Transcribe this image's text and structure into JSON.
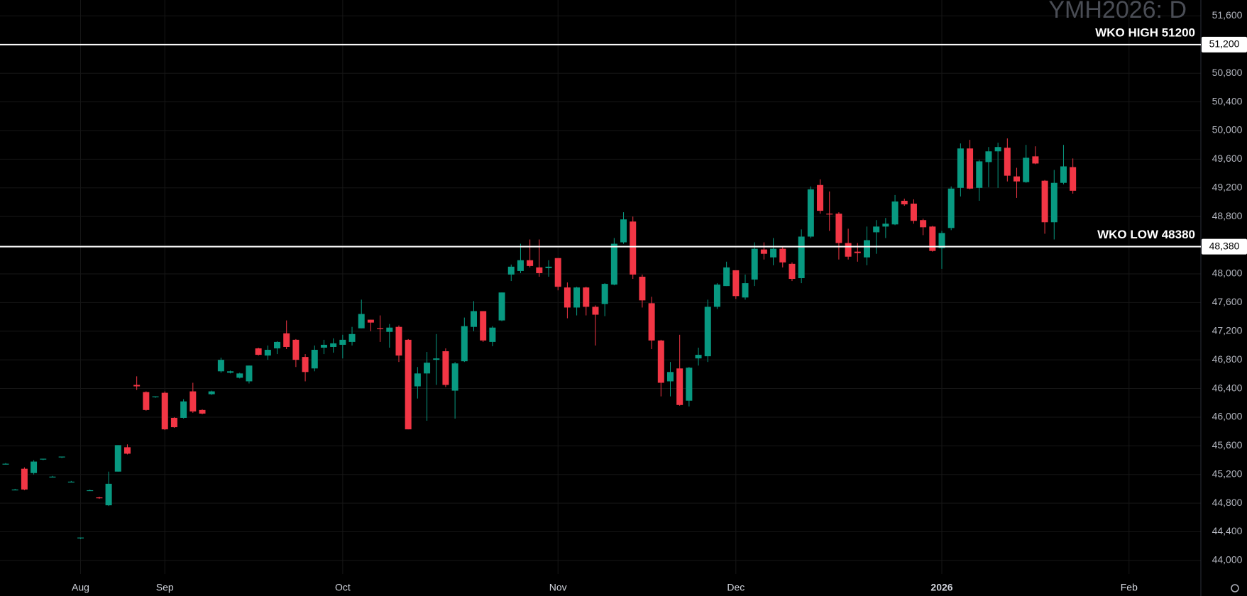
{
  "chart_data": {
    "type": "candlestick",
    "title": "YMH2026: D",
    "categories": [
      null,
      null,
      null,
      null,
      null,
      null,
      null,
      null,
      "Aug",
      null,
      null,
      null,
      null,
      null,
      null,
      null,
      null,
      "Sep",
      null,
      null,
      null,
      null,
      null,
      null,
      null,
      null,
      null,
      null,
      null,
      null,
      null,
      null,
      null,
      null,
      null,
      null,
      "Oct",
      null,
      null,
      null,
      null,
      null,
      null,
      null,
      null,
      null,
      null,
      null,
      null,
      null,
      null,
      null,
      null,
      null,
      null,
      null,
      null,
      null,
      null,
      "Nov",
      null,
      null,
      null,
      null,
      null,
      null,
      null,
      null,
      null,
      null,
      null,
      null,
      null,
      null,
      null,
      null,
      null,
      null,
      "Dec",
      null,
      null,
      null,
      null,
      null,
      null,
      null,
      null,
      null,
      null,
      null,
      null,
      null,
      null,
      null,
      null,
      null,
      null,
      null,
      null,
      null,
      "2026",
      null,
      null,
      null,
      null,
      null,
      null,
      null,
      null,
      null,
      null,
      null,
      null,
      null,
      null,
      null,
      null,
      null,
      null,
      null,
      "Feb",
      null,
      null,
      null,
      null,
      null,
      null,
      null
    ],
    "open": [
      45350,
      44990,
      45280,
      45220,
      45410,
      45170,
      45440,
      45100,
      44310,
      44980,
      44880,
      44770,
      45240,
      45580,
      46450,
      46350,
      46280,
      46340,
      45990,
      45990,
      46360,
      46100,
      46320,
      46640,
      46620,
      46550,
      46500,
      46960,
      46860,
      46960,
      47170,
      47080,
      46840,
      46680,
      46970,
      46980,
      47010,
      47050,
      47240,
      47360,
      47240,
      47190,
      47260,
      47080,
      46430,
      46610,
      46800,
      46920,
      46370,
      46780,
      47260,
      47480,
      47050,
      47350,
      47990,
      48040,
      48190,
      48090,
      48080,
      48220,
      47810,
      47530,
      47810,
      47540,
      47580,
      47850,
      48440,
      48730,
      47960,
      47590,
      47070,
      46500,
      46680,
      46230,
      46820,
      46850,
      47540,
      47830,
      48050,
      47670,
      47920,
      48340,
      48230,
      48350,
      48140,
      47940,
      48520,
      49240,
      48840,
      48840,
      48430,
      48310,
      48230,
      48580,
      48660,
      48690,
      49020,
      48980,
      48750,
      48660,
      48360,
      48640,
      49200,
      49750,
      49200,
      49560,
      49710,
      49760,
      49360,
      49280,
      49640,
      49300,
      48720,
      49270,
      49490,
      null,
      null,
      null,
      null,
      null,
      null,
      null,
      null,
      null,
      null,
      null,
      null,
      null
    ],
    "high": [
      45360,
      45000,
      45300,
      45400,
      45420,
      45180,
      45450,
      45110,
      44320,
      44990,
      44890,
      45240,
      45610,
      45620,
      46570,
      46360,
      46290,
      46360,
      46000,
      46250,
      46480,
      46110,
      46370,
      46830,
      46650,
      46620,
      46720,
      46970,
      47000,
      47060,
      47350,
      47090,
      46880,
      47000,
      47080,
      47100,
      47150,
      47260,
      47640,
      47360,
      47420,
      47300,
      47280,
      47090,
      46700,
      46910,
      47160,
      46960,
      46770,
      47390,
      47620,
      47480,
      47270,
      47740,
      48130,
      48420,
      48480,
      48480,
      48190,
      48220,
      47880,
      47820,
      47820,
      47560,
      47870,
      48500,
      48860,
      48800,
      47990,
      47680,
      47080,
      46770,
      47150,
      46700,
      46970,
      47640,
      47870,
      48170,
      48050,
      47990,
      48440,
      48440,
      48500,
      48380,
      48160,
      48620,
      49220,
      49320,
      49150,
      48860,
      48630,
      48430,
      48660,
      48750,
      48780,
      49100,
      49050,
      49040,
      48770,
      48670,
      48600,
      49220,
      49820,
      49870,
      49590,
      49770,
      49830,
      49890,
      49480,
      49800,
      49780,
      49310,
      49450,
      49800,
      49610,
      null,
      null,
      null,
      null,
      null,
      null,
      null,
      null,
      null,
      null,
      null,
      null,
      null
    ],
    "low": [
      45340,
      44980,
      44980,
      45200,
      45400,
      45160,
      45430,
      45090,
      44300,
      44970,
      44860,
      44760,
      45240,
      45480,
      46380,
      46090,
      46270,
      45820,
      45850,
      45980,
      46060,
      46040,
      46310,
      46620,
      46610,
      46540,
      46470,
      46860,
      46800,
      46880,
      46950,
      46700,
      46500,
      46640,
      46880,
      46900,
      46820,
      47000,
      47240,
      47200,
      47050,
      46970,
      46770,
      45830,
      46260,
      45950,
      46450,
      46420,
      45980,
      46770,
      47200,
      47050,
      46990,
      47340,
      47900,
      48010,
      48090,
      47960,
      47960,
      47770,
      47380,
      47420,
      47420,
      47000,
      47410,
      47840,
      48420,
      47930,
      47530,
      46950,
      46290,
      46290,
      46160,
      46150,
      46720,
      46770,
      47510,
      47830,
      47650,
      47640,
      47830,
      48200,
      48120,
      48090,
      47900,
      47870,
      48500,
      48840,
      48600,
      48200,
      48200,
      48170,
      48120,
      48280,
      48500,
      48680,
      48950,
      48700,
      48540,
      48310,
      48070,
      48610,
      49080,
      49180,
      49020,
      49210,
      49200,
      49290,
      49060,
      49270,
      49530,
      48560,
      48480,
      49250,
      49120,
      null,
      null,
      null,
      null,
      null,
      null,
      null,
      null,
      null,
      null,
      null,
      null,
      null
    ],
    "close": [
      45350,
      44990,
      44990,
      45380,
      45420,
      45170,
      45450,
      45100,
      44320,
      44980,
      44870,
      45070,
      45610,
      45490,
      46430,
      46100,
      46290,
      45830,
      45860,
      46220,
      46080,
      46050,
      46360,
      46800,
      46640,
      46610,
      46720,
      46870,
      46940,
      47050,
      46980,
      46800,
      46630,
      46940,
      47010,
      47030,
      47080,
      47160,
      47440,
      47320,
      47230,
      47250,
      46860,
      45830,
      46610,
      46760,
      46820,
      46450,
      46750,
      47270,
      47480,
      47070,
      47250,
      47740,
      48100,
      48190,
      48110,
      48010,
      48100,
      47820,
      47530,
      47810,
      47540,
      47430,
      47860,
      48420,
      48760,
      47990,
      47630,
      47070,
      46480,
      46630,
      46170,
      46690,
      46870,
      47540,
      47850,
      48090,
      47690,
      47870,
      48350,
      48280,
      48350,
      48160,
      47930,
      48520,
      49180,
      48880,
      48830,
      48430,
      48240,
      48290,
      48470,
      48660,
      48700,
      49010,
      48970,
      48740,
      48650,
      48320,
      48570,
      49190,
      49750,
      49190,
      49570,
      49710,
      49770,
      49370,
      49290,
      49620,
      49540,
      48720,
      49270,
      49500,
      49160,
      null,
      null,
      null,
      null,
      null,
      null,
      null,
      null,
      null,
      null,
      null,
      null,
      null
    ],
    "up_color": "#089981",
    "down_color": "#f23645",
    "ylim": [
      43811,
      51822
    ],
    "yticks": [
      {
        "value": 44000,
        "label": "44,000"
      },
      {
        "value": 44400,
        "label": "44,400"
      },
      {
        "value": 44800,
        "label": "44,800"
      },
      {
        "value": 45200,
        "label": "45,200"
      },
      {
        "value": 45600,
        "label": "45,600"
      },
      {
        "value": 46000,
        "label": "46,000"
      },
      {
        "value": 46400,
        "label": "46,400"
      },
      {
        "value": 46800,
        "label": "46,800"
      },
      {
        "value": 47200,
        "label": "47,200"
      },
      {
        "value": 47600,
        "label": "47,600"
      },
      {
        "value": 48000,
        "label": "48,000"
      },
      {
        "value": 48400,
        "label": "48,400"
      },
      {
        "value": 48800,
        "label": "48,800"
      },
      {
        "value": 49200,
        "label": "49,200"
      },
      {
        "value": 49600,
        "label": "49,600"
      },
      {
        "value": 50000,
        "label": "50,000"
      },
      {
        "value": 50400,
        "label": "50,400"
      },
      {
        "value": 50800,
        "label": "50,800"
      },
      {
        "value": 51200,
        "label": "51,200"
      },
      {
        "value": 51600,
        "label": "51,600"
      }
    ],
    "grid": true,
    "levels": [
      {
        "label": "WKO HIGH 51200",
        "value": 51200,
        "value_label": "51,200"
      },
      {
        "label": "WKO LOW 48380",
        "value": 48380,
        "value_label": "48,380"
      }
    ]
  }
}
